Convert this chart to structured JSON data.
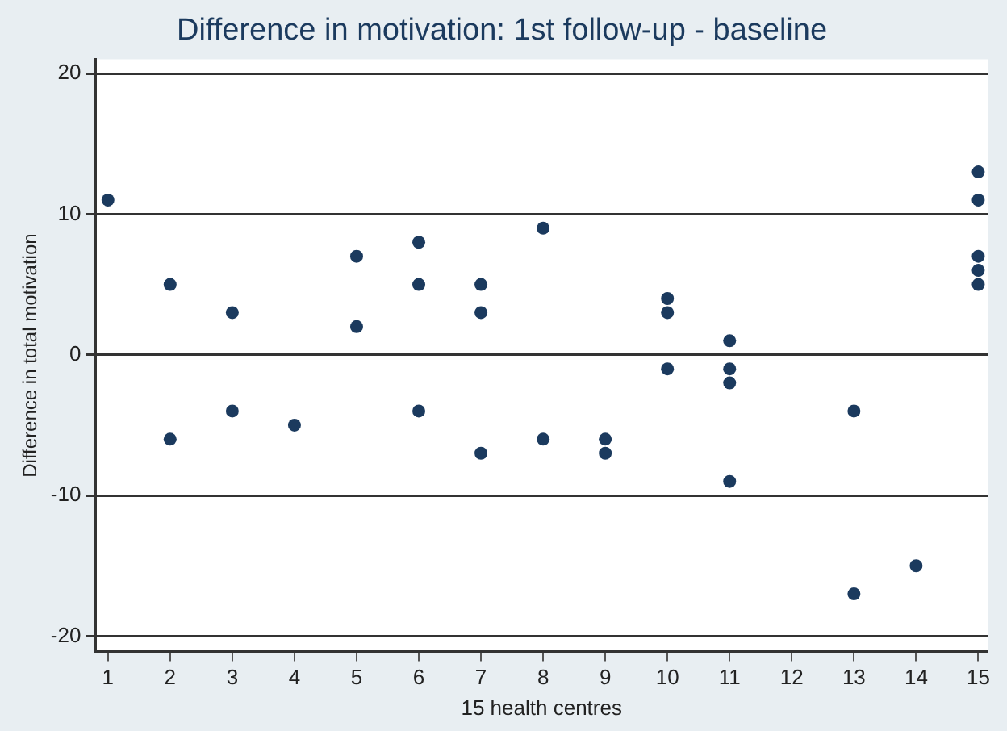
{
  "chart_data": {
    "type": "scatter",
    "title": "Difference in motivation: 1st follow-up - baseline",
    "xlabel": "15 health centres",
    "ylabel": "Difference in total motivation",
    "series": [
      {
        "color": "#1b3a5e",
        "x": [
          1,
          2,
          2,
          3,
          3,
          4,
          5,
          5,
          6,
          6,
          6,
          7,
          7,
          7,
          8,
          8,
          9,
          9,
          10,
          10,
          10,
          11,
          11,
          11,
          11,
          13,
          13,
          14,
          15,
          15,
          15,
          15,
          15
        ],
        "values": [
          11,
          5,
          -6,
          3,
          -4,
          -5,
          7,
          2,
          8,
          5,
          -4,
          5,
          3,
          -7,
          9,
          -6,
          -6,
          -7,
          4,
          3,
          -1,
          1,
          -1,
          -2,
          -9,
          -4,
          -17,
          -15,
          13,
          11,
          7,
          6,
          5
        ]
      }
    ],
    "xlim": [
      0.8,
      15.15
    ],
    "xticks": [
      1,
      2,
      3,
      4,
      5,
      6,
      7,
      8,
      9,
      10,
      11,
      12,
      13,
      14,
      15
    ],
    "ylim": [
      -21.1,
      21
    ],
    "yticks": [
      -20,
      -10,
      0,
      10,
      20
    ],
    "grid": "y",
    "marker": "circle",
    "legend": false
  }
}
